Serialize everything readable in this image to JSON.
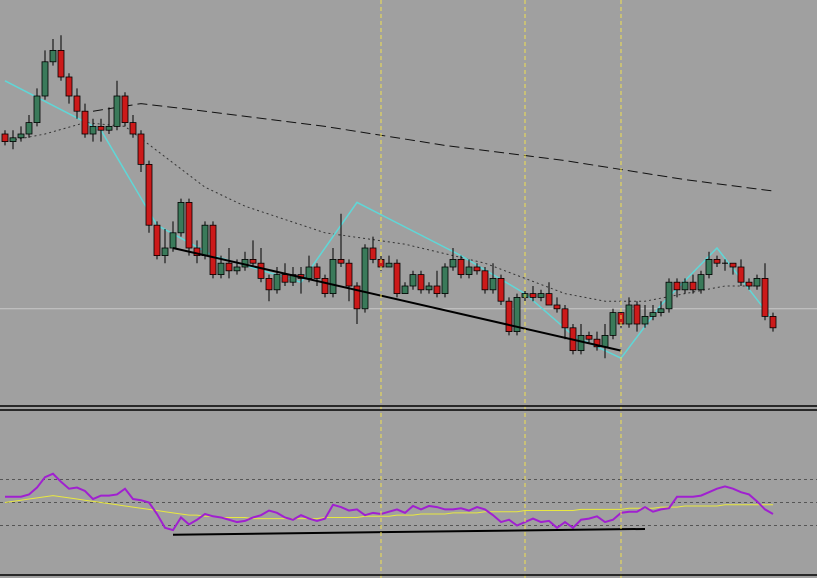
{
  "colors": {
    "background": "#a0a0a0",
    "bull": "#3a7a5a",
    "bear": "#cc1a1a",
    "wick": "#000000",
    "zigzag": "#5fd7d7",
    "ma_long": "#111111",
    "ma_short": "#333333",
    "trendline": "#000000",
    "vline": "#f0e050",
    "hline": "#c8c8c8",
    "oscillator": "#a020d0",
    "signal": "#e8e840",
    "separator": "#000000",
    "osc_grid": "#555555"
  },
  "chart_data": [
    {
      "type": "candlestick",
      "title": "",
      "xlabel": "",
      "ylabel": "",
      "grid": false,
      "ylim": [
        0,
        100
      ],
      "candles": [
        [
          70,
          68,
          71,
          67
        ],
        [
          68,
          69,
          71,
          66
        ],
        [
          69,
          70,
          72,
          68
        ],
        [
          70,
          73,
          75,
          69
        ],
        [
          73,
          80,
          82,
          72
        ],
        [
          80,
          89,
          92,
          79
        ],
        [
          89,
          92,
          95,
          88
        ],
        [
          92,
          85,
          96,
          84
        ],
        [
          85,
          80,
          86,
          78
        ],
        [
          80,
          76,
          82,
          74
        ],
        [
          76,
          70,
          78,
          69
        ],
        [
          70,
          72,
          74,
          68
        ],
        [
          72,
          71,
          74,
          68
        ],
        [
          71,
          72,
          77,
          70
        ],
        [
          72,
          80,
          84,
          71
        ],
        [
          80,
          73,
          81,
          72
        ],
        [
          73,
          70,
          75,
          69
        ],
        [
          70,
          62,
          71,
          60
        ],
        [
          62,
          46,
          63,
          44
        ],
        [
          46,
          38,
          47,
          37
        ],
        [
          38,
          40,
          45,
          36
        ],
        [
          40,
          44,
          47,
          39
        ],
        [
          44,
          52,
          53,
          43
        ],
        [
          52,
          40,
          53,
          38
        ],
        [
          40,
          38,
          42,
          36
        ],
        [
          38,
          46,
          47,
          37
        ],
        [
          46,
          33,
          47,
          32
        ],
        [
          33,
          36,
          38,
          32
        ],
        [
          36,
          34,
          40,
          32
        ],
        [
          34,
          35,
          37,
          33
        ],
        [
          35,
          37,
          39,
          34
        ],
        [
          37,
          36,
          42,
          35
        ],
        [
          36,
          32,
          40,
          31
        ],
        [
          32,
          29,
          33,
          26
        ],
        [
          29,
          33,
          35,
          28
        ],
        [
          33,
          31,
          36,
          30
        ],
        [
          31,
          33,
          35,
          30
        ],
        [
          33,
          32,
          35,
          28
        ],
        [
          32,
          35,
          38,
          31
        ],
        [
          35,
          32,
          36,
          30
        ],
        [
          32,
          28,
          33,
          27
        ],
        [
          28,
          37,
          40,
          27
        ],
        [
          37,
          36,
          49,
          35
        ],
        [
          36,
          30,
          37,
          26
        ],
        [
          30,
          24,
          31,
          20
        ],
        [
          24,
          40,
          41,
          23
        ],
        [
          40,
          37,
          43,
          36
        ],
        [
          37,
          35,
          38,
          34
        ],
        [
          35,
          36,
          38,
          35
        ],
        [
          36,
          28,
          37,
          27
        ],
        [
          28,
          30,
          31,
          28
        ],
        [
          30,
          33,
          34,
          29
        ],
        [
          33,
          29,
          34,
          28
        ],
        [
          29,
          30,
          31,
          28
        ],
        [
          30,
          28,
          34,
          27
        ],
        [
          28,
          35,
          36,
          27
        ],
        [
          35,
          37,
          40,
          34
        ],
        [
          37,
          33,
          38,
          32
        ],
        [
          33,
          35,
          37,
          32
        ],
        [
          35,
          34,
          36,
          33
        ],
        [
          34,
          29,
          35,
          28
        ],
        [
          29,
          32,
          36,
          28
        ],
        [
          32,
          26,
          33,
          25
        ],
        [
          26,
          18,
          27,
          17
        ],
        [
          18,
          27,
          28,
          17
        ],
        [
          27,
          28,
          29,
          26
        ],
        [
          28,
          27,
          30,
          26
        ],
        [
          27,
          28,
          29,
          26
        ],
        [
          28,
          25,
          31,
          25
        ],
        [
          25,
          24,
          27,
          23
        ],
        [
          24,
          19,
          25,
          16
        ],
        [
          19,
          13,
          20,
          12
        ],
        [
          13,
          17,
          20,
          12
        ],
        [
          17,
          16,
          18,
          15
        ],
        [
          16,
          14,
          18,
          13
        ],
        [
          14,
          17,
          20,
          11
        ],
        [
          17,
          23,
          24,
          16
        ],
        [
          23,
          20,
          24,
          19
        ],
        [
          20,
          25,
          27,
          19
        ],
        [
          25,
          20,
          26,
          18
        ],
        [
          20,
          22,
          25,
          19
        ],
        [
          22,
          23,
          25,
          21
        ],
        [
          23,
          24,
          26,
          22
        ],
        [
          24,
          31,
          32,
          23
        ],
        [
          31,
          29,
          32,
          27
        ],
        [
          29,
          31,
          32,
          28
        ],
        [
          31,
          29,
          33,
          28
        ],
        [
          29,
          33,
          34,
          28
        ],
        [
          33,
          37,
          39,
          32
        ],
        [
          37,
          36,
          38,
          35
        ],
        [
          36,
          36,
          37,
          34
        ],
        [
          36,
          35,
          36,
          33
        ],
        [
          35,
          31,
          37,
          30
        ],
        [
          31,
          30,
          32,
          29
        ],
        [
          30,
          32,
          33,
          29
        ],
        [
          32,
          22,
          36,
          21
        ],
        [
          22,
          19,
          23,
          18
        ]
      ],
      "moving_averages": [
        {
          "style": "dashed-long",
          "values": [
            [
              11,
              76
            ],
            [
              17,
              78
            ],
            [
              25,
              76
            ],
            [
              40,
              72
            ],
            [
              55,
              67
            ],
            [
              70,
              63
            ],
            [
              85,
              58
            ],
            [
              96,
              55
            ]
          ]
        },
        {
          "style": "dotted-short",
          "values": [
            [
              0,
              68
            ],
            [
              5,
              70
            ],
            [
              10,
              73
            ],
            [
              15,
              72
            ],
            [
              20,
              64
            ],
            [
              25,
              56
            ],
            [
              30,
              51
            ],
            [
              40,
              44
            ],
            [
              50,
              41
            ],
            [
              60,
              36
            ],
            [
              70,
              28
            ],
            [
              75,
              26
            ],
            [
              80,
              26
            ],
            [
              85,
              28
            ],
            [
              90,
              30
            ],
            [
              95,
              30
            ]
          ]
        }
      ],
      "zigzag": [
        [
          0,
          84
        ],
        [
          12,
          71
        ],
        [
          19,
          46
        ],
        [
          26,
          38
        ],
        [
          37,
          31
        ],
        [
          44,
          52
        ],
        [
          57,
          38
        ],
        [
          65,
          28
        ],
        [
          71,
          17
        ],
        [
          77,
          11
        ],
        [
          82,
          25
        ],
        [
          89,
          40
        ],
        [
          96,
          21
        ]
      ],
      "trendlines": [
        [
          [
            21,
            40
          ],
          [
            77,
            13
          ]
        ]
      ],
      "horizontal_lines": [
        24
      ],
      "vertical_markers": [
        47,
        65,
        77
      ]
    },
    {
      "type": "line",
      "title": "",
      "xlabel": "",
      "ylabel": "",
      "ylim": [
        0,
        100
      ],
      "levels": [
        70,
        50,
        30
      ],
      "series": [
        {
          "values": [
            55,
            55,
            55,
            57,
            63,
            72,
            75,
            68,
            62,
            63,
            60,
            53,
            56,
            56,
            57,
            62,
            53,
            52,
            50,
            40,
            28,
            26,
            37,
            31,
            35,
            40,
            38,
            37,
            35,
            33,
            34,
            37,
            39,
            43,
            41,
            37,
            35,
            39,
            36,
            34,
            36,
            48,
            46,
            43,
            44,
            39,
            41,
            40,
            42,
            44,
            41,
            47,
            44,
            47,
            46,
            44,
            44,
            45,
            43,
            46,
            44,
            39,
            33,
            35,
            30,
            33,
            36,
            33,
            34,
            28,
            33,
            28,
            35,
            36,
            38,
            33,
            35,
            41,
            42,
            42,
            46,
            42,
            44,
            45,
            55,
            55,
            55,
            56,
            59,
            62,
            64,
            62,
            59,
            57,
            51,
            44,
            40
          ]
        },
        {
          "values": [
            50,
            51,
            52,
            53,
            54,
            55,
            56,
            55,
            54,
            53,
            52,
            51,
            50,
            49,
            48,
            47,
            46,
            45,
            44,
            43,
            42,
            41,
            40,
            39,
            39,
            38,
            38,
            37,
            37,
            37,
            37,
            36,
            36,
            36,
            36,
            36,
            36,
            36,
            36,
            36,
            37,
            37,
            37,
            37,
            37,
            38,
            38,
            38,
            38,
            39,
            39,
            39,
            40,
            40,
            40,
            40,
            41,
            41,
            41,
            41,
            42,
            42,
            42,
            42,
            42,
            43,
            43,
            43,
            43,
            43,
            43,
            43,
            44,
            44,
            44,
            44,
            44,
            44,
            45,
            45,
            45,
            45,
            46,
            46,
            46,
            47,
            47,
            47,
            47,
            47,
            48,
            48,
            48,
            48,
            48,
            48,
            48
          ]
        }
      ],
      "trendlines": [
        [
          [
            21,
            22
          ],
          [
            80,
            27
          ]
        ]
      ],
      "vertical_markers": [
        47,
        65,
        77
      ]
    }
  ]
}
